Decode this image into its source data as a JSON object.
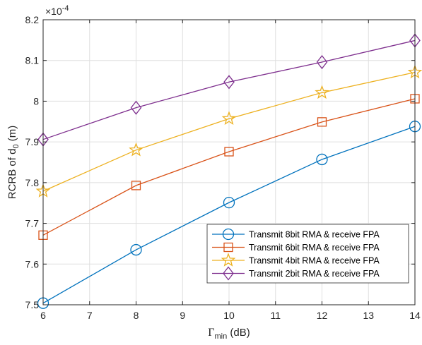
{
  "chart_data": {
    "type": "line",
    "x": [
      6,
      8,
      10,
      12,
      14
    ],
    "xlim": [
      6,
      14
    ],
    "ylim": [
      7.5,
      8.2
    ],
    "xticks": [
      6,
      7,
      8,
      9,
      10,
      11,
      12,
      13,
      14
    ],
    "yticks": [
      "7.5",
      "7.6",
      "7.7",
      "7.8",
      "7.9",
      "8",
      "8.1",
      "8.2"
    ],
    "y_exponent": "×10",
    "y_exponent_power": "-4",
    "xlabel": {
      "symbol": "Γ",
      "sub": "min",
      "rest": " (dB)"
    },
    "ylabel": {
      "text": "RCRB of d",
      "sub": "0",
      "rest": " (m)"
    },
    "grid": true,
    "legend_placement": "bottom-right",
    "series": [
      {
        "name": "Transmit 8bit RMA & receive FPA",
        "values": [
          7.504,
          7.635,
          7.751,
          7.857,
          7.938
        ],
        "marker": "circle",
        "color": "#0072BD"
      },
      {
        "name": "Transmit 6bit RMA & receive FPA",
        "values": [
          7.671,
          7.793,
          7.876,
          7.949,
          8.006
        ],
        "marker": "square",
        "color": "#D95319"
      },
      {
        "name": "Transmit 4bit RMA & receive FPA",
        "values": [
          7.779,
          7.88,
          7.957,
          8.021,
          8.071
        ],
        "marker": "star",
        "color": "#EDB120"
      },
      {
        "name": "Transmit 2bit RMA & receive FPA",
        "values": [
          7.906,
          7.984,
          8.047,
          8.096,
          8.149
        ],
        "marker": "diamond",
        "color": "#7E2F8E"
      }
    ]
  }
}
